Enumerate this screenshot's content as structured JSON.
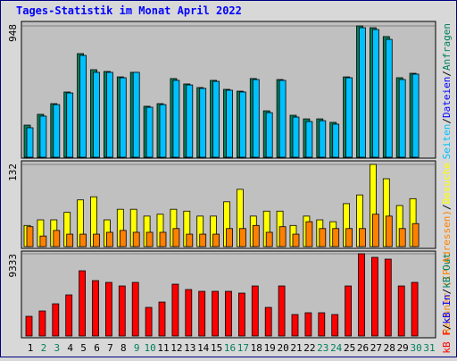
{
  "chart_data": [
    {
      "type": "bar",
      "title": "Tages-Statistik im Monat April 2022",
      "ylim": [
        0,
        948
      ],
      "yticks": [
        948
      ],
      "legend": [
        {
          "name": "Seiten",
          "color": "#00c0ff"
        },
        {
          "name": "/",
          "color": "#000000"
        },
        {
          "name": "Dateien",
          "color": "#0000ff"
        },
        {
          "name": "/",
          "color": "#000000"
        },
        {
          "name": "Anfragen",
          "color": "#00805c"
        }
      ],
      "series": [
        {
          "color": "#00805c",
          "values": [
            232,
            310,
            387,
            471,
            748,
            632,
            619,
            580,
            613,
            368,
            387,
            568,
            529,
            503,
            555,
            490,
            477,
            568,
            335,
            561,
            303,
            277,
            277,
            252,
            580,
            948,
            935,
            871,
            574,
            606,
            null
          ]
        },
        {
          "color": "#00c0ff",
          "values": [
            213,
            297,
            380,
            464,
            735,
            613,
            613,
            574,
            613,
            361,
            380,
            555,
            522,
            497,
            548,
            484,
            471,
            561,
            322,
            555,
            290,
            258,
            264,
            239,
            574,
            935,
            922,
            851,
            561,
            600,
            null
          ]
        }
      ]
    },
    {
      "type": "bar",
      "ylim": [
        0,
        132
      ],
      "yticks": [
        132
      ],
      "legend": [
        {
          "name": "Rechner (IP-Adressen)",
          "color": "#ff8000"
        },
        {
          "name": "/",
          "color": "#000000"
        },
        {
          "name": "Besuche",
          "color": "#ffff00"
        }
      ],
      "series": [
        {
          "color": "#ffff00",
          "values": [
            34,
            43,
            43,
            55,
            75,
            80,
            43,
            60,
            60,
            49,
            52,
            60,
            57,
            49,
            49,
            72,
            92,
            49,
            57,
            57,
            34,
            49,
            43,
            40,
            69,
            83,
            132,
            109,
            66,
            77,
            null
          ]
        },
        {
          "color": "#ff8000",
          "values": [
            32,
            17,
            26,
            20,
            20,
            20,
            23,
            26,
            23,
            23,
            23,
            29,
            20,
            20,
            20,
            29,
            29,
            34,
            23,
            32,
            20,
            40,
            29,
            29,
            29,
            29,
            52,
            49,
            29,
            37,
            null
          ]
        }
      ]
    },
    {
      "type": "bar",
      "ylim": [
        0,
        9333
      ],
      "yticks": [
        9333
      ],
      "legend": [
        {
          "name": "kB F",
          "color": "#ff0000"
        },
        {
          "name": "/",
          "color": "#000000"
        },
        {
          "name": "kB In",
          "color": "#0000ff"
        },
        {
          "name": "/",
          "color": "#000000"
        },
        {
          "name": "kB Out",
          "color": "#00805c"
        }
      ],
      "categories": [
        "1",
        "2",
        "3",
        "4",
        "5",
        "6",
        "7",
        "8",
        "9",
        "10",
        "11",
        "12",
        "13",
        "14",
        "15",
        "16",
        "17",
        "18",
        "19",
        "20",
        "21",
        "22",
        "23",
        "24",
        "25",
        "26",
        "27",
        "28",
        "29",
        "30",
        "31"
      ],
      "category_colors": [
        "#000000",
        "#00805c",
        "#00805c",
        "#000000",
        "#000000",
        "#000000",
        "#000000",
        "#000000",
        "#00805c",
        "#00805c",
        "#000000",
        "#000000",
        "#000000",
        "#000000",
        "#000000",
        "#00805c",
        "#00805c",
        "#000000",
        "#000000",
        "#000000",
        "#000000",
        "#000000",
        "#00805c",
        "#00805c",
        "#000000",
        "#000000",
        "#000000",
        "#000000",
        "#000000",
        "#00805c",
        "#00805c"
      ],
      "series": [
        {
          "color": "#ff0000",
          "values": [
            2231,
            2839,
            3650,
            4664,
            7402,
            6287,
            6084,
            5678,
            6084,
            3245,
            3853,
            5881,
            5273,
            5070,
            5070,
            5070,
            4867,
            5678,
            3245,
            5678,
            2434,
            2637,
            2637,
            2434,
            5678,
            9333,
            8927,
            8724,
            5678,
            6084,
            null
          ]
        }
      ]
    }
  ]
}
